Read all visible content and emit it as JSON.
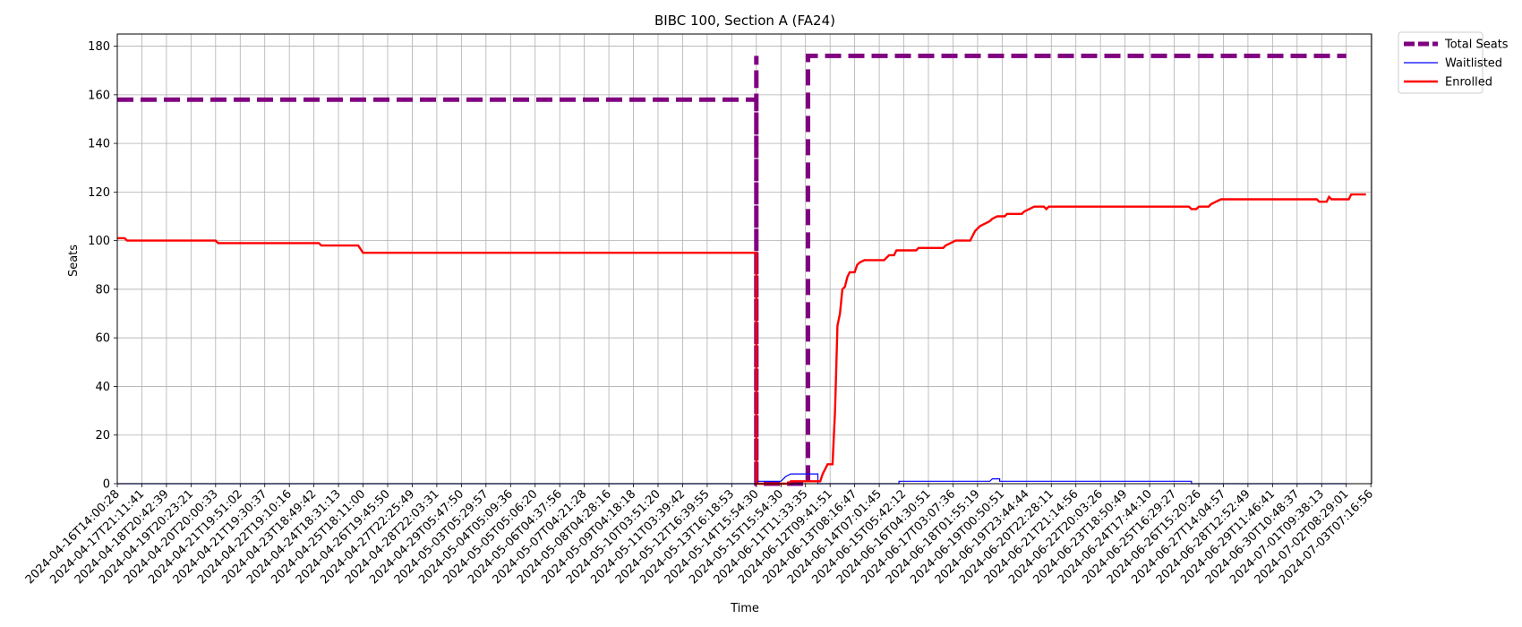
{
  "chart_data": {
    "type": "line",
    "title": "BIBC 100, Section A (FA24)",
    "xlabel": "Time",
    "ylabel": "Seats",
    "ylim": [
      0,
      185
    ],
    "yticks": [
      0,
      20,
      40,
      60,
      80,
      100,
      120,
      140,
      160,
      180
    ],
    "grid": true,
    "legend_position": "outside-top-right",
    "x_tick_labels": [
      "2024-04-16T14:00:28",
      "2024-04-17T21:11:41",
      "2024-04-18T20:42:39",
      "2024-04-19T20:23:21",
      "2024-04-20T20:00:33",
      "2024-04-21T19:51:02",
      "2024-04-21T19:30:37",
      "2024-04-22T19:10:16",
      "2024-04-23T18:49:42",
      "2024-04-24T18:31:13",
      "2024-04-25T18:11:00",
      "2024-04-26T19:45:50",
      "2024-04-27T22:25:49",
      "2024-04-28T22:03:31",
      "2024-04-29T05:47:50",
      "2024-05-03T05:29:57",
      "2024-05-04T05:09:36",
      "2024-05-05T05:06:20",
      "2024-05-06T04:37:56",
      "2024-05-07T04:21:28",
      "2024-05-08T04:28:16",
      "2024-05-09T04:18:18",
      "2024-05-10T03:51:20",
      "2024-05-11T03:39:42",
      "2024-05-12T16:39:55",
      "2024-05-13T16:18:53",
      "2024-05-14T15:54:30",
      "2024-05-15T15:54:30",
      "2024-06-11T11:33:35",
      "2024-06-12T09:41:51",
      "2024-06-13T08:16:47",
      "2024-06-14T07:01:45",
      "2024-06-15T05:42:12",
      "2024-06-16T04:30:51",
      "2024-06-17T03:07:36",
      "2024-06-18T01:55:19",
      "2024-06-19T00:50:51",
      "2024-06-19T23:44:44",
      "2024-06-20T22:28:11",
      "2024-06-21T21:14:56",
      "2024-06-22T20:03:26",
      "2024-06-23T18:50:49",
      "2024-06-24T17:44:10",
      "2024-06-25T16:29:27",
      "2024-06-26T15:20:26",
      "2024-06-27T14:04:57",
      "2024-06-28T12:52:49",
      "2024-06-29T11:46:41",
      "2024-06-30T10:48:37",
      "2024-07-01T09:38:13",
      "2024-07-02T08:29:01",
      "2024-07-03T07:16:56"
    ],
    "series": [
      {
        "name": "Total Seats",
        "color": "#800080",
        "style": "dashed-thick",
        "points": [
          [
            0,
            158
          ],
          [
            26,
            158
          ],
          [
            26,
            0
          ],
          [
            26,
            176
          ],
          [
            26,
            0
          ],
          [
            28.1,
            0
          ],
          [
            28.1,
            176
          ],
          [
            50,
            176
          ]
        ]
      },
      {
        "name": "Waitlisted",
        "color": "#0000ff",
        "style": "solid-thin",
        "points": [
          [
            0,
            0
          ],
          [
            26,
            0
          ],
          [
            26,
            1
          ],
          [
            27,
            1
          ],
          [
            27.2,
            3
          ],
          [
            27.4,
            4
          ],
          [
            28.5,
            4
          ],
          [
            28.5,
            0
          ],
          [
            31.8,
            0
          ],
          [
            31.8,
            1
          ],
          [
            35.5,
            1
          ],
          [
            35.6,
            2
          ],
          [
            35.9,
            2
          ],
          [
            35.9,
            1
          ],
          [
            43.7,
            1
          ],
          [
            43.7,
            0
          ],
          [
            50,
            0
          ]
        ]
      },
      {
        "name": "Enrolled",
        "color": "#ff0000",
        "style": "solid",
        "points": [
          [
            0,
            101
          ],
          [
            0.3,
            101
          ],
          [
            0.4,
            100
          ],
          [
            4,
            100
          ],
          [
            4.1,
            99
          ],
          [
            8.2,
            99
          ],
          [
            8.3,
            98
          ],
          [
            9.8,
            98
          ],
          [
            10,
            95
          ],
          [
            26,
            95
          ],
          [
            26,
            0
          ],
          [
            27.3,
            0
          ],
          [
            27.4,
            1
          ],
          [
            28.6,
            1
          ],
          [
            28.7,
            4
          ],
          [
            28.8,
            6
          ],
          [
            28.9,
            8
          ],
          [
            29.1,
            8
          ],
          [
            29.2,
            30
          ],
          [
            29.3,
            65
          ],
          [
            29.4,
            70
          ],
          [
            29.5,
            80
          ],
          [
            29.6,
            81
          ],
          [
            29.7,
            85
          ],
          [
            29.8,
            87
          ],
          [
            30,
            87
          ],
          [
            30.1,
            90
          ],
          [
            30.2,
            91
          ],
          [
            30.4,
            92
          ],
          [
            31.2,
            92
          ],
          [
            31.3,
            93
          ],
          [
            31.4,
            94
          ],
          [
            31.6,
            94
          ],
          [
            31.7,
            96
          ],
          [
            32.5,
            96
          ],
          [
            32.6,
            97
          ],
          [
            33.6,
            97
          ],
          [
            33.7,
            98
          ],
          [
            33.9,
            99
          ],
          [
            34.1,
            100
          ],
          [
            34.7,
            100
          ],
          [
            34.8,
            102
          ],
          [
            34.9,
            104
          ],
          [
            35.1,
            106
          ],
          [
            35.3,
            107
          ],
          [
            35.5,
            108
          ],
          [
            35.6,
            109
          ],
          [
            35.8,
            110
          ],
          [
            36.1,
            110
          ],
          [
            36.2,
            111
          ],
          [
            36.8,
            111
          ],
          [
            36.9,
            112
          ],
          [
            37.1,
            113
          ],
          [
            37.3,
            114
          ],
          [
            37.7,
            114
          ],
          [
            37.8,
            113
          ],
          [
            37.9,
            114
          ],
          [
            43.6,
            114
          ],
          [
            43.7,
            113
          ],
          [
            43.9,
            113
          ],
          [
            44,
            114
          ],
          [
            44.4,
            114
          ],
          [
            44.5,
            115
          ],
          [
            44.7,
            116
          ],
          [
            44.9,
            117
          ],
          [
            48.8,
            117
          ],
          [
            48.9,
            116
          ],
          [
            49.2,
            116
          ],
          [
            49.3,
            118
          ],
          [
            49.4,
            117
          ],
          [
            50.1,
            117
          ],
          [
            50.2,
            119
          ],
          [
            50.8,
            119
          ]
        ]
      }
    ]
  }
}
